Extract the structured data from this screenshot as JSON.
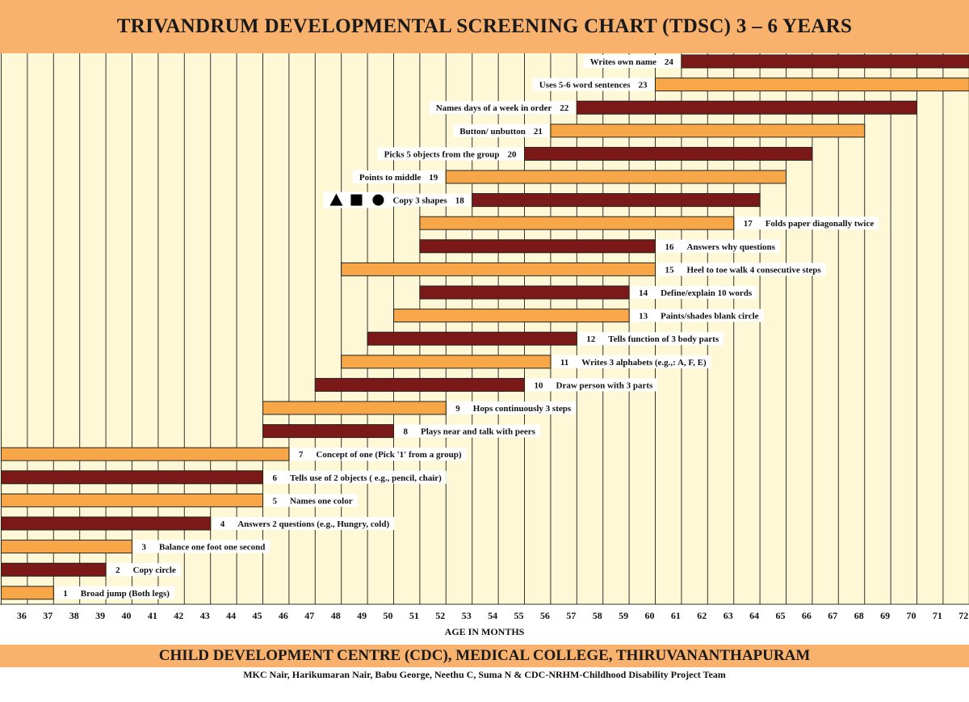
{
  "header": {
    "title": "TRIVANDRUM DEVELOPMENTAL SCREENING CHART (TDSC) 3 – 6 YEARS"
  },
  "footer": {
    "institution": "CHILD DEVELOPMENT CENTRE (CDC), MEDICAL COLLEGE, THIRUVANANTHAPURAM",
    "credits": "MKC Nair, Harikumaran Nair, Babu George, Neethu C, Suma N  & CDC-NRHM-Childhood Disability Project Team"
  },
  "colors": {
    "dark_bar": "#7b1818",
    "light_bar": "#f8a748",
    "background": "#fff8d6",
    "grid": "#333333",
    "band": "#f9b26d"
  },
  "chart_data": {
    "type": "bar",
    "orientation": "horizontal",
    "title": "TRIVANDRUM DEVELOPMENTAL SCREENING CHART (TDSC) 3 – 6 YEARS",
    "xlabel": "AGE IN MONTHS",
    "ylabel": "",
    "xlim": [
      35,
      72
    ],
    "x_ticks": [
      36,
      37,
      38,
      39,
      40,
      41,
      42,
      43,
      44,
      45,
      46,
      47,
      48,
      49,
      50,
      51,
      52,
      53,
      54,
      55,
      56,
      57,
      58,
      59,
      60,
      61,
      62,
      63,
      64,
      65,
      66,
      67,
      68,
      69,
      70,
      71,
      72
    ],
    "shapes_icons": [
      "triangle",
      "square",
      "circle"
    ],
    "items": [
      {
        "num": "24",
        "label": "Writes own name",
        "start": 61,
        "end": 72,
        "color": "dark",
        "label_side": "left"
      },
      {
        "num": "23",
        "label": "Uses 5-6 word sentences",
        "start": 60,
        "end": 72,
        "color": "light",
        "label_side": "left"
      },
      {
        "num": "22",
        "label": "Names days of a week in order",
        "start": 57,
        "end": 70,
        "color": "dark",
        "label_side": "left"
      },
      {
        "num": "21",
        "label": "Button/ unbutton",
        "start": 56,
        "end": 68,
        "color": "light",
        "label_side": "left"
      },
      {
        "num": "20",
        "label": "Picks 5 objects from the group",
        "start": 55,
        "end": 66,
        "color": "dark",
        "label_side": "left"
      },
      {
        "num": "19",
        "label": "Points to middle",
        "start": 52,
        "end": 65,
        "color": "light",
        "label_side": "left"
      },
      {
        "num": "18",
        "label": "Copy 3 shapes",
        "start": 53,
        "end": 64,
        "color": "dark",
        "label_side": "left"
      },
      {
        "num": "17",
        "label": "Folds paper diagonally twice",
        "start": 51,
        "end": 63,
        "color": "light",
        "label_side": "right"
      },
      {
        "num": "16",
        "label": "Answers why questions",
        "start": 51,
        "end": 60,
        "color": "dark",
        "label_side": "right"
      },
      {
        "num": "15",
        "label": "Heel to toe walk 4 consecutive steps",
        "start": 48,
        "end": 60,
        "color": "light",
        "label_side": "right"
      },
      {
        "num": "14",
        "label": "Define/explain 10 words",
        "start": 51,
        "end": 59,
        "color": "dark",
        "label_side": "right"
      },
      {
        "num": "13",
        "label": "Paints/shades blank circle",
        "start": 50,
        "end": 59,
        "color": "light",
        "label_side": "right"
      },
      {
        "num": "12",
        "label": "Tells function of 3 body parts",
        "start": 49,
        "end": 57,
        "color": "dark",
        "label_side": "right"
      },
      {
        "num": "11",
        "label": "Writes 3 alphabets (e.g.,: A,  F,  E)",
        "start": 48,
        "end": 56,
        "color": "light",
        "label_side": "right"
      },
      {
        "num": "10",
        "label": "Draw person with 3 parts",
        "start": 47,
        "end": 55,
        "color": "dark",
        "label_side": "right"
      },
      {
        "num": "9",
        "label": "Hops continuously 3 steps",
        "start": 45,
        "end": 52,
        "color": "light",
        "label_side": "right"
      },
      {
        "num": "8",
        "label": "Plays near and talk with peers",
        "start": 45,
        "end": 50,
        "color": "dark",
        "label_side": "right"
      },
      {
        "num": "7",
        "label": "Concept of one (Pick '1' from a group)",
        "start": 35,
        "end": 46,
        "color": "light",
        "label_side": "right"
      },
      {
        "num": "6",
        "label": "Tells use of 2 objects ( e.g., pencil, chair)",
        "start": 35,
        "end": 45,
        "color": "dark",
        "label_side": "right"
      },
      {
        "num": "5",
        "label": "Names one color",
        "start": 35,
        "end": 45,
        "color": "light",
        "label_side": "right"
      },
      {
        "num": "4",
        "label": "Answers 2 questions (e.g., Hungry, cold)",
        "start": 35,
        "end": 43,
        "color": "dark",
        "label_side": "right"
      },
      {
        "num": "3",
        "label": "Balance one foot one second",
        "start": 35,
        "end": 40,
        "color": "light",
        "label_side": "right"
      },
      {
        "num": "2",
        "label": "Copy circle",
        "start": 35,
        "end": 39,
        "color": "dark",
        "label_side": "right"
      },
      {
        "num": "1",
        "label": "Broad jump (Both legs)",
        "start": 35,
        "end": 37,
        "color": "light",
        "label_side": "right"
      }
    ]
  }
}
